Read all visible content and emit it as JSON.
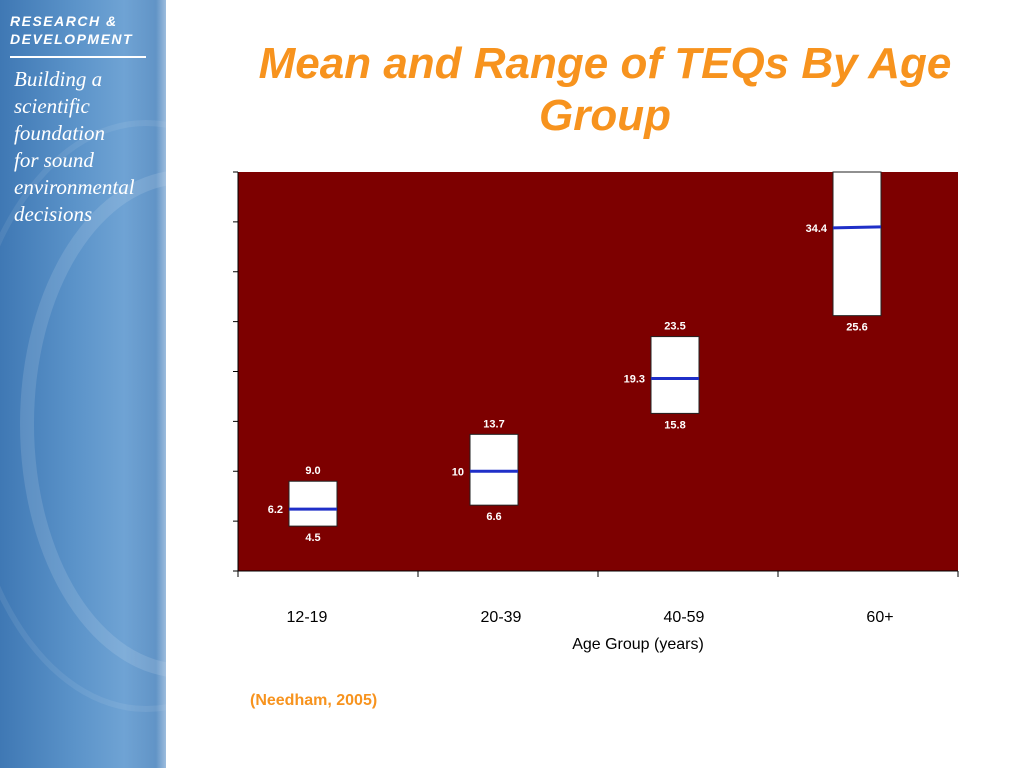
{
  "sidebar": {
    "org_line1": "RESEARCH &",
    "org_line2": "DEVELOPMENT",
    "tagline": [
      "Building a",
      "scientific",
      "foundation",
      "for sound",
      "environmental",
      "decisions"
    ]
  },
  "slide": {
    "title": "Mean and Range of TEQs By Age Group",
    "citation": "(Needham, 2005)"
  },
  "colors": {
    "title": "#f7931e",
    "plot_background": "#7d0000",
    "box_fill": "#ffffff",
    "mean_line": "#1f2fc8"
  },
  "chart_data": {
    "type": "box",
    "title": "Mean and Range of TEQs By Age Group",
    "xlabel": "Age Group (years)",
    "ylabel": "",
    "categories": [
      "12-19",
      "20-39",
      "40-59",
      "60+"
    ],
    "ylim": [
      0,
      40
    ],
    "yticks": [
      0,
      5,
      10,
      15,
      20,
      25,
      30,
      35,
      40
    ],
    "ytick_labels_visible": false,
    "grid": false,
    "series": [
      {
        "category": "12-19",
        "low": 4.5,
        "mean": 6.2,
        "high": 9.0,
        "low_label": "4.5",
        "mean_label": "6.2",
        "high_label": "9.0"
      },
      {
        "category": "20-39",
        "low": 6.6,
        "mean": 10.0,
        "high": 13.7,
        "low_label": "6.6",
        "mean_label": "10",
        "high_label": "13.7"
      },
      {
        "category": "40-59",
        "low": 15.8,
        "mean": 19.3,
        "high": 23.5,
        "low_label": "15.8",
        "mean_label": "19.3",
        "high_label": "23.5"
      },
      {
        "category": "60+",
        "low": 25.6,
        "mean": 34.4,
        "high": 40.0,
        "low_label": "25.6",
        "mean_label": "34.4",
        "high_label": ""
      }
    ]
  }
}
